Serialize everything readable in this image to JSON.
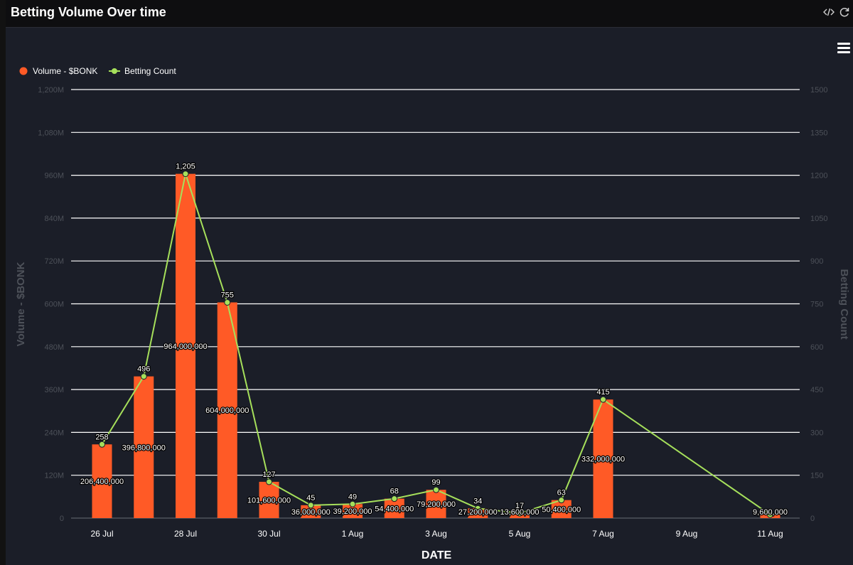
{
  "header": {
    "title": "Betting Volume Over time",
    "code_icon": "code-icon",
    "refresh_icon": "refresh-icon"
  },
  "toolbar": {
    "menu_icon": "hamburger-menu-icon"
  },
  "colors": {
    "bar": "#ff5a26",
    "line": "#a6e05b",
    "grid": "#ffffff",
    "axis_text": "#4d5159",
    "tick_text": "#ffffff"
  },
  "chart_data": {
    "type": "bar",
    "xlabel": "DATE",
    "ylabel": "Volume - $BONK",
    "y2label": "Betting Count",
    "ylim": [
      0,
      1200000000
    ],
    "y2lim": [
      0,
      1500
    ],
    "grid": true,
    "legend_position": "top-left",
    "x_ticks": [
      "26 Jul",
      "28 Jul",
      "30 Jul",
      "1 Aug",
      "3 Aug",
      "5 Aug",
      "7 Aug",
      "9 Aug",
      "11 Aug"
    ],
    "y_ticks": [
      "0",
      "120M",
      "240M",
      "360M",
      "480M",
      "600M",
      "720M",
      "840M",
      "960M",
      "1,080M",
      "1,200M"
    ],
    "y2_ticks": [
      "0",
      "150",
      "300",
      "450",
      "600",
      "750",
      "900",
      "1050",
      "1200",
      "1350",
      "1500"
    ],
    "series": [
      {
        "name": "Volume - $BONK",
        "type": "bar",
        "axis": "left",
        "points": [
          {
            "x": "2024-07-26",
            "value": 206400000,
            "label": "206,400,000"
          },
          {
            "x": "2024-07-27",
            "value": 396800000,
            "label": "396,800,000"
          },
          {
            "x": "2024-07-28",
            "value": 964000000,
            "label": "964,000,000"
          },
          {
            "x": "2024-07-29",
            "value": 604000000,
            "label": "604,000,000"
          },
          {
            "x": "2024-07-30",
            "value": 101600000,
            "label": "101,600,000"
          },
          {
            "x": "2024-07-31",
            "value": 36000000,
            "label": "36,000,000"
          },
          {
            "x": "2024-08-01",
            "value": 39200000,
            "label": "39,200,000"
          },
          {
            "x": "2024-08-02",
            "value": 54400000,
            "label": "54,400,000"
          },
          {
            "x": "2024-08-03",
            "value": 79200000,
            "label": "79,200,000"
          },
          {
            "x": "2024-08-04",
            "value": 27200000,
            "label": "27,200,000"
          },
          {
            "x": "2024-08-05",
            "value": 13600000,
            "label": "13,600,000"
          },
          {
            "x": "2024-08-06",
            "value": 50400000,
            "label": "50,400,000"
          },
          {
            "x": "2024-08-07",
            "value": 332000000,
            "label": "332,000,000"
          },
          {
            "x": "2024-08-11",
            "value": 9600000,
            "label": "9,600,000"
          }
        ]
      },
      {
        "name": "Betting Count",
        "type": "line",
        "axis": "right",
        "points": [
          {
            "x": "2024-07-26",
            "value": 258,
            "label": "258"
          },
          {
            "x": "2024-07-27",
            "value": 496,
            "label": "496"
          },
          {
            "x": "2024-07-28",
            "value": 1205,
            "label": "1,205"
          },
          {
            "x": "2024-07-29",
            "value": 755,
            "label": "755"
          },
          {
            "x": "2024-07-30",
            "value": 127,
            "label": "127"
          },
          {
            "x": "2024-07-31",
            "value": 45,
            "label": "45"
          },
          {
            "x": "2024-08-01",
            "value": 49,
            "label": "49"
          },
          {
            "x": "2024-08-02",
            "value": 68,
            "label": "68"
          },
          {
            "x": "2024-08-03",
            "value": 99,
            "label": "99"
          },
          {
            "x": "2024-08-04",
            "value": 34,
            "label": "34"
          },
          {
            "x": "2024-08-05",
            "value": 17,
            "label": "17"
          },
          {
            "x": "2024-08-06",
            "value": 63,
            "label": "63"
          },
          {
            "x": "2024-08-07",
            "value": 415,
            "label": "415"
          },
          {
            "x": "2024-08-11",
            "value": 12,
            "label": ""
          }
        ]
      }
    ]
  }
}
